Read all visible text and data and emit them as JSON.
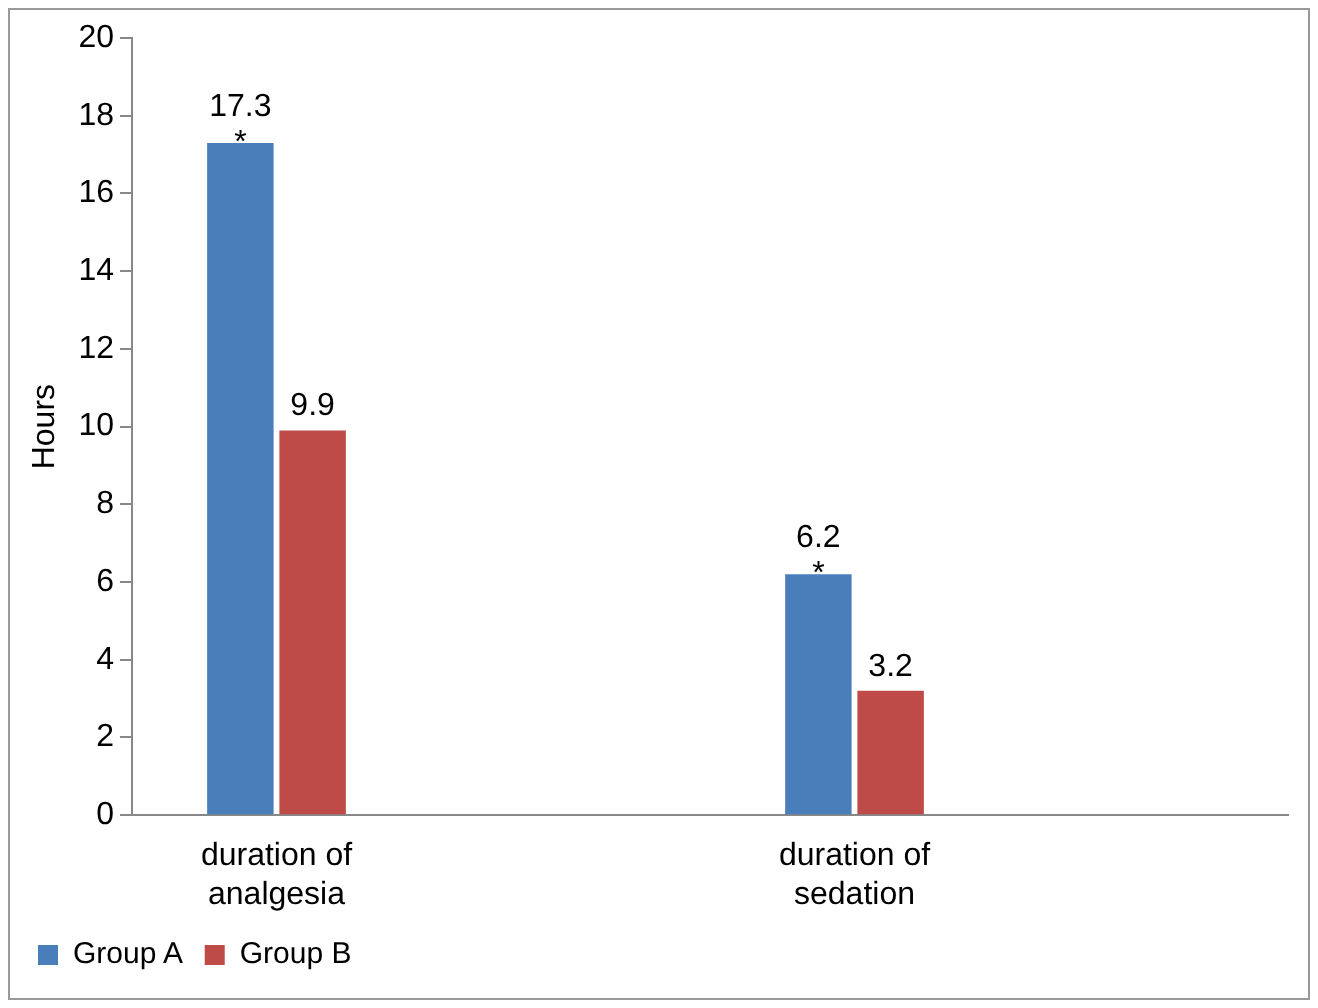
{
  "chart_data": {
    "type": "bar",
    "ylabel": "Hours",
    "categories": [
      "duration of analgesia",
      null,
      "duration of sedation",
      null
    ],
    "series": [
      {
        "name": "Group A",
        "color": "#4a7ebb",
        "values": [
          17.3,
          null,
          6.2,
          null
        ]
      },
      {
        "name": "Group B",
        "color": "#be4b48",
        "values": [
          9.9,
          null,
          3.2,
          null
        ]
      }
    ],
    "ylim": [
      0,
      20
    ],
    "yticks": [
      0,
      2,
      4,
      6,
      8,
      10,
      12,
      14,
      16,
      18,
      20
    ],
    "grid": false,
    "legend": "bottom left",
    "data_labels": true,
    "annotations": [
      {
        "text": "*",
        "x": "duration of analgesia",
        "y": 17.3
      },
      {
        "text": "*",
        "x": "duration of sedation",
        "y": 6.2
      }
    ]
  }
}
